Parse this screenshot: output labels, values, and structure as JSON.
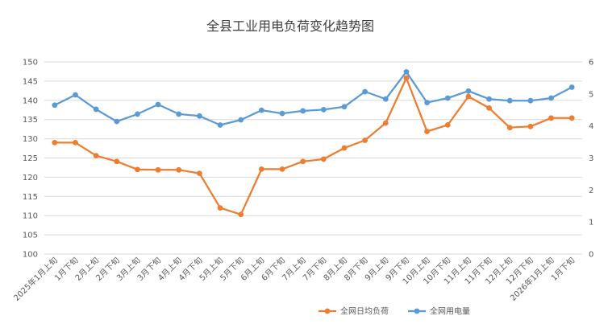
{
  "chart_data": {
    "type": "line",
    "title": "全县工业用电负荷变化趋势图",
    "categories": [
      "2025年1月上旬",
      "1月下旬",
      "2月上旬",
      "2月下旬",
      "3月上旬",
      "3月下旬",
      "4月上旬",
      "4月下旬",
      "5月上旬",
      "5月下旬",
      "6月上旬",
      "6月下旬",
      "7月上旬",
      "7月下旬",
      "8月上旬",
      "8月下旬",
      "9月上旬",
      "9月下旬",
      "10月上旬",
      "10月下旬",
      "11月上旬",
      "11月下旬",
      "12月上旬",
      "12月下旬",
      "2026年1月上旬",
      "1月下旬"
    ],
    "y_left": {
      "min": 100,
      "max": 150,
      "step": 5,
      "ticks": [
        "100",
        "105",
        "110",
        "115",
        "120",
        "125",
        "130",
        "135",
        "140",
        "145",
        "150"
      ]
    },
    "y_right": {
      "min": 0,
      "max": 6,
      "step": 1,
      "ticks": [
        "0",
        "1",
        "2",
        "3",
        "4",
        "5",
        "6"
      ]
    },
    "series": [
      {
        "name": "全网日均负荷",
        "axis": "left",
        "color": "#ED7D31",
        "values": [
          129,
          129,
          125.6,
          124.1,
          122,
          121.9,
          121.9,
          121,
          112,
          110.3,
          122.1,
          122.1,
          124.1,
          124.7,
          127.6,
          129.6,
          134.1,
          145.8,
          131.9,
          133.6,
          141,
          138,
          132.9,
          133.2,
          135.4,
          135.4
        ]
      },
      {
        "name": "全网用电量",
        "axis": "right",
        "color": "#5B9BD5",
        "values": [
          4.65,
          4.97,
          4.52,
          4.14,
          4.37,
          4.67,
          4.37,
          4.31,
          4.03,
          4.19,
          4.49,
          4.39,
          4.47,
          4.51,
          4.6,
          5.07,
          4.84,
          5.69,
          4.73,
          4.87,
          5.09,
          4.84,
          4.79,
          4.79,
          4.87,
          5.21
        ]
      }
    ],
    "legend_position": "bottom",
    "grid": true
  }
}
